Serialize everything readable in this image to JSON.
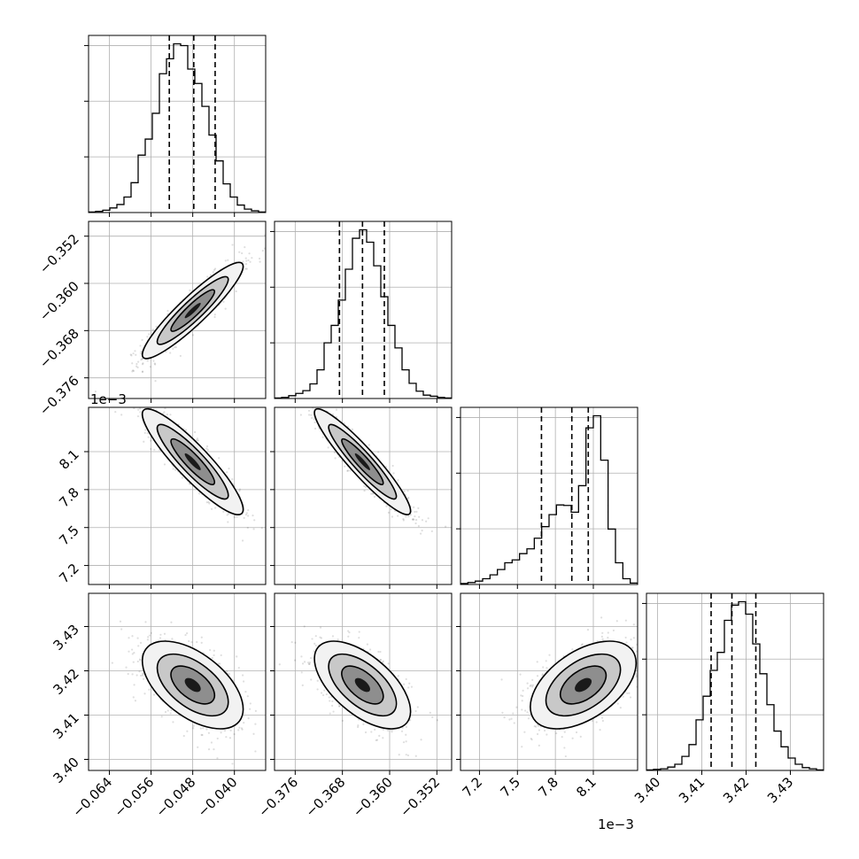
{
  "chart_data": {
    "type": "corner",
    "grid": true,
    "params": [
      {
        "range": [
          -0.068,
          -0.034
        ],
        "ticks": [
          -0.064,
          -0.056,
          -0.048,
          -0.04
        ],
        "tick_labels": [
          "−0.064",
          "−0.056",
          "−0.048",
          "−0.040"
        ],
        "offset_text": "",
        "hist_counts": [
          1,
          2,
          4,
          8,
          14,
          27,
          52,
          100,
          128,
          173,
          242,
          268,
          294,
          291,
          250,
          225,
          185,
          135,
          90,
          50,
          27,
          13,
          6,
          3,
          1
        ],
        "quantiles": [
          -0.0525,
          -0.0478,
          -0.0437
        ],
        "mode": -0.048
      },
      {
        "range": [
          -0.3795,
          -0.3495
        ],
        "ticks": [
          -0.376,
          -0.368,
          -0.36,
          -0.352
        ],
        "tick_labels": [
          "−0.376",
          "−0.368",
          "−0.360",
          "−0.352"
        ],
        "offset_text": "",
        "hist_counts": [
          1,
          2,
          5,
          9,
          14,
          26,
          51,
          99,
          130,
          175,
          230,
          285,
          300,
          278,
          236,
          181,
          130,
          90,
          51,
          27,
          13,
          6,
          4,
          2,
          1
        ],
        "quantiles": [
          -0.3685,
          -0.3646,
          -0.3609
        ],
        "mode": -0.3646
      },
      {
        "range": [
          7.05,
          8.45
        ],
        "ticks": [
          7.2,
          7.5,
          7.8,
          8.1
        ],
        "tick_labels": [
          "7.2",
          "7.5",
          "7.8",
          "8.1"
        ],
        "offset_text": "1e−3",
        "hist_counts": [
          2,
          4,
          7,
          12,
          20,
          31,
          45,
          51,
          64,
          74,
          96,
          120,
          145,
          165,
          164,
          150,
          205,
          325,
          350,
          258,
          115,
          45,
          12,
          3
        ],
        "quantiles": [
          7.69,
          7.93,
          8.06
        ],
        "mode": 8.02
      },
      {
        "range": [
          3.3975,
          3.4375
        ],
        "ticks": [
          3.4,
          3.41,
          3.42,
          3.43
        ],
        "tick_labels": [
          "3.40",
          "3.41",
          "3.42",
          "3.43"
        ],
        "offset_text": "",
        "hist_counts": [
          1,
          2,
          3,
          6,
          11,
          25,
          46,
          90,
          132,
          178,
          210,
          267,
          294,
          300,
          278,
          225,
          172,
          117,
          70,
          42,
          22,
          11,
          5,
          3,
          1
        ],
        "quantiles": [
          3.4121,
          3.4168,
          3.4222
        ],
        "mode": 3.4168
      }
    ],
    "correlations": [
      [
        1.0,
        0.92,
        -0.9,
        -0.55
      ],
      [
        0.92,
        1.0,
        -0.93,
        -0.6
      ],
      [
        -0.9,
        -0.93,
        1.0,
        0.5
      ],
      [
        -0.55,
        -0.6,
        0.5,
        1.0
      ]
    ],
    "stds": [
      0.0044,
      0.0037,
      0.19,
      0.0045
    ]
  }
}
